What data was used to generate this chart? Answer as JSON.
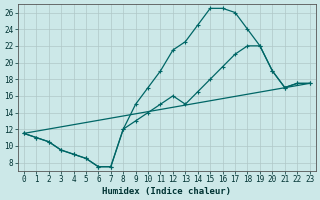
{
  "xlabel": "Humidex (Indice chaleur)",
  "background_color": "#cce8e8",
  "grid_color": "#b0c8c8",
  "line_color": "#006666",
  "xlim": [
    -0.5,
    23.5
  ],
  "ylim": [
    7,
    27
  ],
  "xticks": [
    0,
    1,
    2,
    3,
    4,
    5,
    6,
    7,
    8,
    9,
    10,
    11,
    12,
    13,
    14,
    15,
    16,
    17,
    18,
    19,
    20,
    21,
    22,
    23
  ],
  "yticks": [
    8,
    10,
    12,
    14,
    16,
    18,
    20,
    22,
    24,
    26
  ],
  "line1_x": [
    0,
    1,
    2,
    3,
    4,
    5,
    6,
    7,
    8,
    9,
    10,
    11,
    12,
    13,
    14,
    15,
    16,
    17,
    18,
    19,
    20,
    21,
    22,
    23
  ],
  "line1_y": [
    11.5,
    11.0,
    10.5,
    9.5,
    9.0,
    8.5,
    7.5,
    7.5,
    12.0,
    15.0,
    17.0,
    19.0,
    21.5,
    22.5,
    24.5,
    26.5,
    26.5,
    26.0,
    24.0,
    22.0,
    19.0,
    17.0,
    17.5,
    17.5
  ],
  "line2_x": [
    0,
    1,
    2,
    3,
    4,
    5,
    6,
    7,
    8,
    9,
    10,
    11,
    12,
    13,
    14,
    15,
    16,
    17,
    18,
    19,
    20,
    21,
    22,
    23
  ],
  "line2_y": [
    11.5,
    11.0,
    10.5,
    9.5,
    9.0,
    8.5,
    7.5,
    7.5,
    12.0,
    13.0,
    14.0,
    15.0,
    16.0,
    15.0,
    16.5,
    18.0,
    19.5,
    21.0,
    22.0,
    22.0,
    19.0,
    17.0,
    17.5,
    17.5
  ],
  "line3_x": [
    0,
    23
  ],
  "line3_y": [
    11.5,
    17.5
  ]
}
